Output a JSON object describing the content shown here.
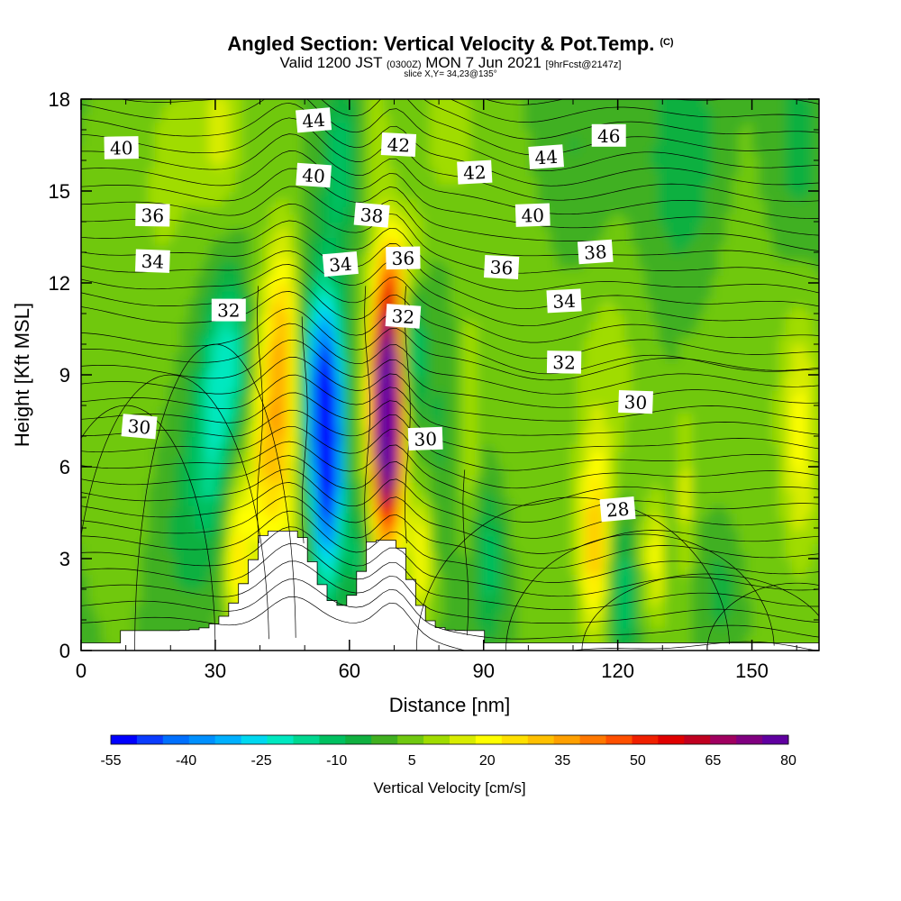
{
  "header": {
    "title": "Angled Section: Vertical Velocity & Pot.Temp.",
    "title_units": "(C)",
    "subtitle_a": "Valid 1200 JST",
    "subtitle_b": "(0300Z)",
    "subtitle_c": "MON 7 Jun 2021",
    "subtitle_d": "[9hrFcst@2147z]",
    "slice": "slice X,Y= 34,23@135°"
  },
  "chart_data": {
    "type": "heatmap",
    "title": "Angled Section: Vertical Velocity & Pot.Temp.",
    "xlabel": "Distance [nm]",
    "ylabel": "Height [Kft MSL]",
    "xlim": [
      0,
      165
    ],
    "ylim": [
      0,
      18
    ],
    "x_ticks": [
      0,
      30,
      60,
      90,
      120,
      150
    ],
    "y_ticks": [
      0,
      3,
      6,
      9,
      12,
      15,
      18
    ],
    "colorbar": {
      "label": "Vertical Velocity [cm/s]",
      "ticks": [
        -55,
        -40,
        -25,
        -10,
        5,
        20,
        35,
        50,
        65,
        80
      ],
      "colors": [
        "#0000ff",
        "#0a3cff",
        "#0070ff",
        "#0090ff",
        "#00b0ff",
        "#00d8f0",
        "#00e8c0",
        "#00d890",
        "#00c060",
        "#10b040",
        "#40b020",
        "#70c810",
        "#a0dc00",
        "#d8ec00",
        "#ffff00",
        "#ffe000",
        "#ffc000",
        "#ffa000",
        "#ff7800",
        "#ff5000",
        "#f02000",
        "#e00000",
        "#c00020",
        "#a00060",
        "#800080",
        "#6000a0"
      ]
    },
    "theta_contour_labels": [
      {
        "value": "44",
        "x": 52,
        "y": 17.3
      },
      {
        "value": "40",
        "x": 9,
        "y": 16.4
      },
      {
        "value": "42",
        "x": 71,
        "y": 16.5
      },
      {
        "value": "44",
        "x": 104,
        "y": 16.1
      },
      {
        "value": "46",
        "x": 118,
        "y": 16.8
      },
      {
        "value": "40",
        "x": 52,
        "y": 15.5
      },
      {
        "value": "42",
        "x": 88,
        "y": 15.6
      },
      {
        "value": "36",
        "x": 16,
        "y": 14.2
      },
      {
        "value": "38",
        "x": 65,
        "y": 14.2
      },
      {
        "value": "40",
        "x": 101,
        "y": 14.2
      },
      {
        "value": "34",
        "x": 16,
        "y": 12.7
      },
      {
        "value": "34",
        "x": 58,
        "y": 12.6
      },
      {
        "value": "36",
        "x": 72,
        "y": 12.8
      },
      {
        "value": "36",
        "x": 94,
        "y": 12.5
      },
      {
        "value": "38",
        "x": 115,
        "y": 13.0
      },
      {
        "value": "32",
        "x": 33,
        "y": 11.1
      },
      {
        "value": "32",
        "x": 72,
        "y": 10.9
      },
      {
        "value": "34",
        "x": 108,
        "y": 11.4
      },
      {
        "value": "32",
        "x": 108,
        "y": 9.4
      },
      {
        "value": "30",
        "x": 13,
        "y": 7.3
      },
      {
        "value": "30",
        "x": 77,
        "y": 6.9
      },
      {
        "value": "30",
        "x": 124,
        "y": 8.1
      },
      {
        "value": "28",
        "x": 120,
        "y": 4.6
      }
    ],
    "updraft_cores": [
      {
        "x": 68.5,
        "y": 7.5,
        "value": 80
      },
      {
        "x": 45,
        "y": 8.0,
        "value": 40
      }
    ],
    "downdraft_cores": [
      {
        "x": 55,
        "y": 6.5,
        "value": -55
      }
    ],
    "terrain_peaks_kft": [
      {
        "x": 45,
        "y": 3.9
      },
      {
        "x": 68,
        "y": 3.6
      }
    ]
  }
}
